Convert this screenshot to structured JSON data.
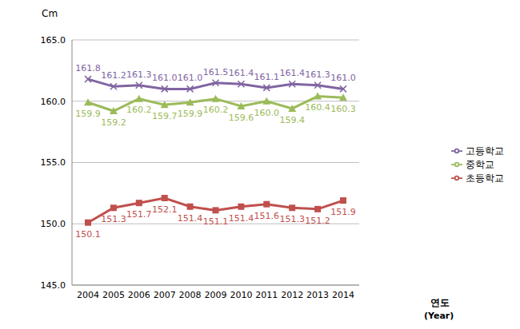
{
  "chart_data": {
    "type": "line",
    "y_label": "Cm",
    "x_label": [
      "연도",
      "(Year)"
    ],
    "categories": [
      "2004",
      "2005",
      "2006",
      "2007",
      "2008",
      "2009",
      "2010",
      "2011",
      "2012",
      "2013",
      "2014"
    ],
    "series": [
      {
        "name": "초등학교",
        "color": "#c0504d",
        "marker": "square",
        "values": [
          150.1,
          151.3,
          151.7,
          152.1,
          151.4,
          151.1,
          151.4,
          151.6,
          151.3,
          151.2,
          151.9
        ],
        "value_labels": [
          "150.1",
          "151.3",
          "151.7",
          "152.1",
          "151.4",
          "151.1",
          "151.4",
          "151.6",
          "151.3",
          "151.2",
          "151.9"
        ]
      },
      {
        "name": "중학교",
        "color": "#9bbb59",
        "marker": "triangle",
        "values": [
          159.9,
          159.2,
          160.2,
          159.7,
          159.9,
          160.2,
          159.6,
          160.0,
          159.4,
          160.4,
          160.3
        ],
        "value_labels": [
          "159.9",
          "159.2",
          "160.2",
          "159.7",
          "159.9",
          "160.2",
          "159.6",
          "160.0",
          "159.4",
          "160.4",
          "160.3"
        ]
      },
      {
        "name": "고등학교",
        "color": "#8064a2",
        "marker": "cross",
        "values": [
          161.8,
          161.2,
          161.3,
          161.0,
          161.0,
          161.5,
          161.4,
          161.1,
          161.4,
          161.3,
          161.0
        ],
        "value_labels": [
          "161.8",
          "161.2",
          "161.3",
          "161.0",
          "161.0",
          "161.5",
          "161.4",
          "161.1",
          "161.4",
          "161.3",
          "161.0"
        ]
      }
    ],
    "ylim": [
      145,
      165
    ],
    "yticks": [
      {
        "value": 145,
        "label": "145.0"
      },
      {
        "value": 150,
        "label": "150.0"
      },
      {
        "value": 155,
        "label": "155.0"
      },
      {
        "value": 160,
        "label": "160.0"
      },
      {
        "value": 165,
        "label": "165.0"
      }
    ],
    "grid": true,
    "legend": "right",
    "data_labels": true
  }
}
